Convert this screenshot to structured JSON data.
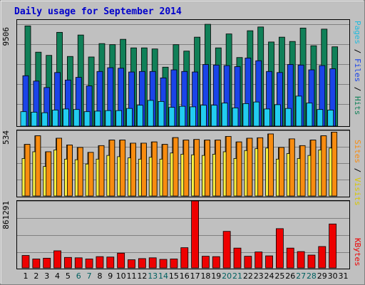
{
  "title": "Daily usage for September 2014",
  "colors": {
    "hits": "#108058",
    "files": "#1a44e8",
    "pages": "#22ccf0",
    "visits": "#f88c10",
    "sites": "#f8f040",
    "kbytes": "#ee0000",
    "weekday": "#000000",
    "weekend": "#006060",
    "background": "#c0c0c0"
  },
  "right_labels": {
    "panel1": [
      {
        "text": "Pages",
        "color": "#22bbdd"
      },
      {
        "text": " / ",
        "color": "#000000"
      },
      {
        "text": "Files",
        "color": "#1a44e8"
      },
      {
        "text": " / ",
        "color": "#000000"
      },
      {
        "text": "Hits",
        "color": "#108058"
      }
    ],
    "panel2": [
      {
        "text": "Sites",
        "color": "#f88c10"
      },
      {
        "text": " / ",
        "color": "#000000"
      },
      {
        "text": "Visits",
        "color": "#d8c800"
      }
    ],
    "panel3": [
      {
        "text": "KBytes",
        "color": "#ee0000"
      }
    ]
  },
  "chart_data": {
    "type": "bar",
    "days": [
      "1",
      "2",
      "3",
      "4",
      "5",
      "6",
      "7",
      "8",
      "9",
      "10",
      "11",
      "12",
      "13",
      "14",
      "15",
      "16",
      "17",
      "18",
      "19",
      "20",
      "21",
      "22",
      "23",
      "24",
      "25",
      "26",
      "27",
      "28",
      "29",
      "30",
      "31"
    ],
    "weekend_days": [
      "6",
      "7",
      "13",
      "14",
      "20",
      "21",
      "27",
      "28"
    ],
    "panels": [
      {
        "name": "hits-files-pages",
        "ymax_label": "9506",
        "ymax": 9506,
        "series": [
          {
            "name": "Hits",
            "values": [
              9350,
              6900,
              6600,
              8750,
              6500,
              8500,
              6450,
              7700,
              7600,
              8100,
              7300,
              7300,
              7200,
              5500,
              7600,
              7000,
              8300,
              9500,
              7300,
              8600,
              6400,
              8900,
              9250,
              7850,
              8300,
              7900,
              9150,
              7500,
              9050,
              7400,
              0
            ]
          },
          {
            "name": "Files",
            "values": [
              4700,
              4200,
              3600,
              5000,
              4300,
              4550,
              3750,
              5100,
              5450,
              5400,
              5050,
              5100,
              5100,
              4500,
              5250,
              5100,
              5050,
              5750,
              5700,
              5650,
              5550,
              6350,
              6100,
              5100,
              5000,
              5750,
              5700,
              5250,
              5650,
              5350,
              0
            ]
          },
          {
            "name": "Pages",
            "values": [
              1350,
              1300,
              1250,
              1500,
              1600,
              1550,
              1350,
              1400,
              1450,
              1450,
              1650,
              1950,
              2400,
              2300,
              1750,
              1850,
              1800,
              1950,
              1950,
              2150,
              1700,
              2100,
              2250,
              1600,
              2000,
              1650,
              2800,
              2150,
              1550,
              1500,
              0
            ]
          }
        ]
      },
      {
        "name": "visits-sites",
        "ymax_label": "534",
        "ymax": 534,
        "series": [
          {
            "name": "Visits",
            "values": [
              420,
              490,
              360,
              470,
              415,
              395,
              355,
              410,
              455,
              455,
              430,
              430,
              440,
              420,
              475,
              455,
              460,
              455,
              455,
              485,
              440,
              470,
              474,
              505,
              395,
              465,
              410,
              455,
              490,
              520,
              0
            ]
          },
          {
            "name": "Sites",
            "values": [
              305,
              360,
              240,
              375,
              300,
              295,
              260,
              300,
              330,
              320,
              310,
              300,
              315,
              300,
              350,
              340,
              335,
              330,
              340,
              360,
              305,
              370,
              385,
              390,
              300,
              345,
              305,
              330,
              375,
              390,
              0
            ]
          }
        ]
      },
      {
        "name": "kbytes",
        "ymax_label": "861291",
        "ymax": 861291,
        "series": [
          {
            "name": "KBytes",
            "values": [
              160000,
              115000,
              125000,
              220000,
              135000,
              130000,
              115000,
              145000,
              140000,
              190000,
              105000,
              120000,
              130000,
              110000,
              115000,
              260000,
              861291,
              150000,
              145000,
              470000,
              255000,
              150000,
              205000,
              155000,
              505000,
              255000,
              210000,
              165000,
              275000,
              565000,
              0
            ]
          }
        ]
      }
    ]
  }
}
